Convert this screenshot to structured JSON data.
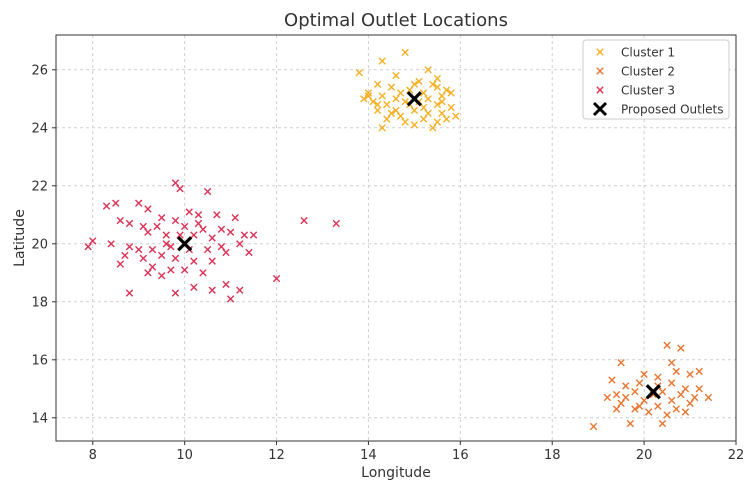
{
  "chart_data": {
    "type": "scatter",
    "title": "Optimal Outlet Locations",
    "xlabel": "Longitude",
    "ylabel": "Latitude",
    "xlim": [
      7.2,
      22.0
    ],
    "ylim": [
      13.2,
      27.2
    ],
    "xticks": [
      8,
      10,
      12,
      14,
      16,
      18,
      20,
      22
    ],
    "yticks": [
      14,
      16,
      18,
      20,
      22,
      24,
      26
    ],
    "grid": true,
    "legend_position": "top-right",
    "series": [
      {
        "name": "Cluster 1",
        "color": "#F5B025",
        "marker": "x",
        "points": [
          [
            13.8,
            25.9
          ],
          [
            14.3,
            26.3
          ],
          [
            14.8,
            26.6
          ],
          [
            15.3,
            26.0
          ],
          [
            14.6,
            25.8
          ],
          [
            15.5,
            25.7
          ],
          [
            14.2,
            25.5
          ],
          [
            14.5,
            25.4
          ],
          [
            15.0,
            25.5
          ],
          [
            15.4,
            25.5
          ],
          [
            15.7,
            25.3
          ],
          [
            14.0,
            25.2
          ],
          [
            14.3,
            25.1
          ],
          [
            14.7,
            25.2
          ],
          [
            15.2,
            25.2
          ],
          [
            15.6,
            25.1
          ],
          [
            15.8,
            25.2
          ],
          [
            13.9,
            25.0
          ],
          [
            14.1,
            24.9
          ],
          [
            14.4,
            24.8
          ],
          [
            14.8,
            24.9
          ],
          [
            15.1,
            24.9
          ],
          [
            15.5,
            24.8
          ],
          [
            15.8,
            24.7
          ],
          [
            14.2,
            24.6
          ],
          [
            14.6,
            24.6
          ],
          [
            15.0,
            24.6
          ],
          [
            15.3,
            24.5
          ],
          [
            15.6,
            24.5
          ],
          [
            15.9,
            24.4
          ],
          [
            14.4,
            24.3
          ],
          [
            14.8,
            24.2
          ],
          [
            15.2,
            24.3
          ],
          [
            15.5,
            24.2
          ],
          [
            14.3,
            24.0
          ],
          [
            15.0,
            24.1
          ],
          [
            15.4,
            24.0
          ],
          [
            14.9,
            24.8
          ],
          [
            15.2,
            24.7
          ],
          [
            14.6,
            25.0
          ],
          [
            15.3,
            25.0
          ],
          [
            14.0,
            25.1
          ],
          [
            15.6,
            24.9
          ],
          [
            14.5,
            24.5
          ],
          [
            15.7,
            24.3
          ],
          [
            14.9,
            25.3
          ],
          [
            15.1,
            25.6
          ],
          [
            14.7,
            24.4
          ],
          [
            15.5,
            25.4
          ],
          [
            14.2,
            24.8
          ]
        ]
      },
      {
        "name": "Cluster 2",
        "color": "#E87531",
        "marker": "x",
        "points": [
          [
            20.5,
            16.5
          ],
          [
            20.8,
            16.4
          ],
          [
            20.6,
            15.9
          ],
          [
            19.5,
            15.9
          ],
          [
            21.0,
            15.5
          ],
          [
            21.2,
            15.6
          ],
          [
            20.3,
            15.4
          ],
          [
            19.3,
            15.3
          ],
          [
            19.9,
            15.2
          ],
          [
            20.0,
            15.5
          ],
          [
            19.6,
            15.1
          ],
          [
            20.6,
            15.2
          ],
          [
            20.9,
            15.0
          ],
          [
            21.2,
            15.0
          ],
          [
            19.8,
            14.9
          ],
          [
            20.4,
            14.9
          ],
          [
            19.4,
            14.8
          ],
          [
            20.8,
            14.8
          ],
          [
            21.1,
            14.7
          ],
          [
            21.4,
            14.7
          ],
          [
            19.2,
            14.7
          ],
          [
            20.0,
            14.6
          ],
          [
            20.6,
            14.6
          ],
          [
            21.0,
            14.5
          ],
          [
            19.5,
            14.5
          ],
          [
            19.9,
            14.4
          ],
          [
            20.3,
            14.4
          ],
          [
            20.7,
            14.3
          ],
          [
            19.4,
            14.3
          ],
          [
            20.1,
            14.2
          ],
          [
            20.5,
            14.1
          ],
          [
            19.7,
            13.8
          ],
          [
            20.4,
            13.8
          ],
          [
            18.9,
            13.7
          ],
          [
            20.2,
            14.8
          ],
          [
            20.7,
            15.6
          ],
          [
            19.8,
            14.3
          ],
          [
            20.9,
            14.2
          ],
          [
            19.6,
            14.7
          ],
          [
            20.3,
            15.1
          ]
        ]
      },
      {
        "name": "Cluster 3",
        "color": "#DC3256",
        "marker": "x",
        "points": [
          [
            9.8,
            22.1
          ],
          [
            9.9,
            21.9
          ],
          [
            10.5,
            21.8
          ],
          [
            8.3,
            21.3
          ],
          [
            8.5,
            21.4
          ],
          [
            9.0,
            21.4
          ],
          [
            9.2,
            21.2
          ],
          [
            10.1,
            21.1
          ],
          [
            10.3,
            21.0
          ],
          [
            10.7,
            21.0
          ],
          [
            11.1,
            20.9
          ],
          [
            9.5,
            20.9
          ],
          [
            9.8,
            20.8
          ],
          [
            8.6,
            20.8
          ],
          [
            8.8,
            20.7
          ],
          [
            9.1,
            20.6
          ],
          [
            9.4,
            20.6
          ],
          [
            10.0,
            20.6
          ],
          [
            10.4,
            20.5
          ],
          [
            10.8,
            20.5
          ],
          [
            11.0,
            20.4
          ],
          [
            11.3,
            20.3
          ],
          [
            9.2,
            20.4
          ],
          [
            9.6,
            20.3
          ],
          [
            9.9,
            20.3
          ],
          [
            10.2,
            20.3
          ],
          [
            10.6,
            20.2
          ],
          [
            8.0,
            20.1
          ],
          [
            7.9,
            19.9
          ],
          [
            8.4,
            20.0
          ],
          [
            8.8,
            19.9
          ],
          [
            9.0,
            19.8
          ],
          [
            9.3,
            19.8
          ],
          [
            9.7,
            19.9
          ],
          [
            10.1,
            19.8
          ],
          [
            10.5,
            19.8
          ],
          [
            10.9,
            19.7
          ],
          [
            11.4,
            19.7
          ],
          [
            8.7,
            19.6
          ],
          [
            9.1,
            19.5
          ],
          [
            9.5,
            19.6
          ],
          [
            9.8,
            19.5
          ],
          [
            10.2,
            19.4
          ],
          [
            10.6,
            19.4
          ],
          [
            8.6,
            19.3
          ],
          [
            9.3,
            19.2
          ],
          [
            9.7,
            19.1
          ],
          [
            10.0,
            19.1
          ],
          [
            10.4,
            19.0
          ],
          [
            9.5,
            18.9
          ],
          [
            10.9,
            18.6
          ],
          [
            11.2,
            18.4
          ],
          [
            10.2,
            18.5
          ],
          [
            10.6,
            18.4
          ],
          [
            9.8,
            18.3
          ],
          [
            8.8,
            18.3
          ],
          [
            11.0,
            18.1
          ],
          [
            12.0,
            18.8
          ],
          [
            12.6,
            20.8
          ],
          [
            13.3,
            20.7
          ],
          [
            11.5,
            20.3
          ],
          [
            10.3,
            20.7
          ],
          [
            9.6,
            20.0
          ],
          [
            10.8,
            19.9
          ],
          [
            9.2,
            19.0
          ],
          [
            11.2,
            20.0
          ]
        ]
      },
      {
        "name": "Proposed Outlets",
        "color": "#000000",
        "marker": "X",
        "points": [
          [
            15.0,
            25.0
          ],
          [
            20.2,
            14.9
          ],
          [
            10.0,
            20.0
          ]
        ]
      }
    ]
  }
}
